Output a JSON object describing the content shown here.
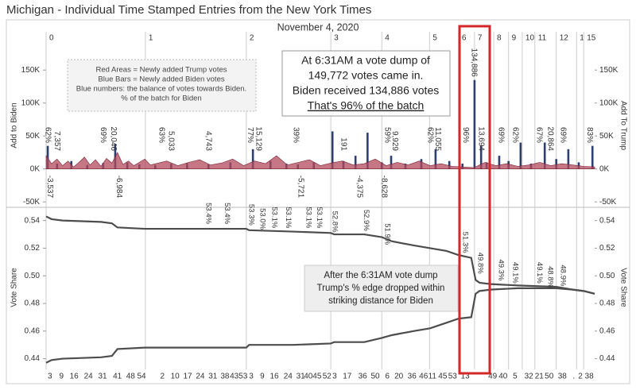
{
  "chart_data": [
    {
      "type": "bar",
      "title": "Michigan - Individual Time Stamped Entries from the New York Times",
      "subtitle": "November 4, 2020",
      "ylabel": "Add to Biden",
      "y2label": "Add To Trump",
      "xlim": [
        0,
        100
      ],
      "xticks": [
        {
          "value": 0,
          "label": "0"
        },
        {
          "value": 18.1,
          "label": "1"
        },
        {
          "value": 36.5,
          "label": "2"
        },
        {
          "value": 51.9,
          "label": "3"
        },
        {
          "value": 61.2,
          "label": "4"
        },
        {
          "value": 69.9,
          "label": "5"
        },
        {
          "value": 75.2,
          "label": "6"
        },
        {
          "value": 78.1,
          "label": "7"
        },
        {
          "value": 81.6,
          "label": "8"
        },
        {
          "value": 84.3,
          "label": "9"
        },
        {
          "value": 86.8,
          "label": "10"
        },
        {
          "value": 89.1,
          "label": "11"
        },
        {
          "value": 93.0,
          "label": "12"
        },
        {
          "value": 96.7,
          "label": "1"
        },
        {
          "value": 98.0,
          "label": "15"
        }
      ],
      "ylim": [
        -57000,
        190000
      ],
      "yticks": [
        {
          "value": -50000,
          "label": "-50K"
        },
        {
          "value": 0,
          "label": "0K"
        },
        {
          "value": 50000,
          "label": "50K"
        },
        {
          "value": 100000,
          "label": "100K"
        },
        {
          "value": 150000,
          "label": "150K"
        }
      ],
      "series": [
        {
          "type": "bar",
          "color": "#2d3f6e",
          "x": [
            0.3,
            2.0,
            4.6,
            7.5,
            10.4,
            12.6,
            14.8,
            17.0,
            19.9,
            22.8,
            25.7,
            29.6,
            33.6,
            37.7,
            40.9,
            43.8,
            45.9,
            48.8,
            52.2,
            54.2,
            56.4,
            58.6,
            61.2,
            62.9,
            65.5,
            68.4,
            71.0,
            73.5,
            75.9,
            78.1,
            79.3,
            80.3,
            82.6,
            84.3,
            86.5,
            88.4,
            90.9,
            93.0,
            95.2,
            97.1,
            99.6
          ],
          "values": [
            35000,
            8000,
            12000,
            6000,
            9000,
            38000,
            10000,
            7000,
            6000,
            8000,
            9000,
            7000,
            10000,
            30000,
            12000,
            8000,
            7000,
            10000,
            57000,
            12000,
            20000,
            55000,
            10000,
            20000,
            8000,
            15000,
            30000,
            12000,
            8000,
            134886,
            35000,
            10000,
            20000,
            12000,
            40000,
            8000,
            40000,
            15000,
            30000,
            10000,
            35000
          ]
        },
        {
          "type": "area",
          "color": "#b24a5c",
          "x": [
            0,
            1,
            2,
            3,
            4,
            5,
            6,
            7,
            8,
            9,
            10,
            11,
            12,
            13,
            14,
            15,
            16,
            17,
            18,
            19,
            20,
            22,
            24,
            26,
            28,
            30,
            32,
            34,
            36,
            38,
            40,
            42,
            44,
            46,
            48,
            50,
            52,
            54,
            56,
            58,
            60,
            62,
            64,
            66,
            68,
            70,
            72,
            74,
            76,
            78,
            80,
            82,
            84,
            86,
            88,
            90,
            92,
            94,
            96,
            98,
            100
          ],
          "values": [
            20000,
            8000,
            15000,
            5000,
            12000,
            3000,
            10000,
            18000,
            6000,
            14000,
            4000,
            16000,
            9000,
            25000,
            7000,
            12000,
            5000,
            10000,
            15000,
            6000,
            8000,
            12000,
            5000,
            10000,
            14000,
            6000,
            9000,
            15000,
            5000,
            12000,
            8000,
            20000,
            6000,
            10000,
            14000,
            5000,
            9000,
            12000,
            6000,
            8000,
            15000,
            5000,
            10000,
            6000,
            12000,
            5000,
            8000,
            4000,
            3000,
            2000,
            10000,
            5000,
            8000,
            4000,
            6000,
            10000,
            5000,
            8000,
            6000,
            4000,
            3000
          ]
        }
      ],
      "balance_labels": {
        "x": [
          2.0,
          12.3,
          22.8,
          29.6,
          38.7,
          46.4,
          54.2,
          63.6,
          71.4,
          78.0,
          79.3,
          91.9,
          0.7,
          13.3,
          57.1,
          61.6
        ],
        "values": [
          7357,
          20046,
          5033,
          4743,
          15129,
          -5721,
          191,
          9929,
          11055,
          134886,
          13694,
          20864,
          -3537,
          -6984,
          -4375,
          -8628
        ],
        "value_labels": [
          "7,357",
          "20,046",
          "5,033",
          "4,743",
          "15,129",
          "-5,721",
          "191",
          "9,929",
          "11,055",
          "134,886",
          "13,694",
          "20,864",
          "-3,537",
          "-6,984",
          "-4,375",
          "-8,628"
        ]
      },
      "batch_share": {
        "x": [
          0.3,
          10.4,
          21.0,
          37.2,
          45.5,
          62.2,
          70.0,
          76.5,
          82.9,
          85.5,
          89.9,
          94.2,
          99.1
        ],
        "values": [
          62,
          69,
          63,
          77,
          39,
          59,
          62,
          96,
          69,
          62,
          67,
          69,
          83
        ],
        "value_labels": [
          "62%",
          "69%",
          "63%",
          "77%",
          "39%",
          "59%",
          "62%",
          "96%",
          "69%",
          "62%",
          "67%",
          "69%",
          "83%"
        ]
      },
      "legend_note": [
        "Red Areas = Newly added Trump votes",
        "Blue Bars = Newly added Biden votes",
        "Blue numbers: the balance of votes towards Biden.",
        "% of the batch for Biden"
      ],
      "callout": [
        "At 6:31AM a vote dump of",
        "149,772 votes came in.",
        "Biden received 134,886 votes",
        "That's 96% of the batch"
      ]
    },
    {
      "type": "line",
      "ylabel": "Vote Share",
      "xlim": [
        0,
        100
      ],
      "xticks": [
        {
          "value": 0.7,
          "label": "3"
        },
        {
          "value": 2.8,
          "label": "9"
        },
        {
          "value": 5.1,
          "label": "16"
        },
        {
          "value": 7.7,
          "label": "24"
        },
        {
          "value": 10.3,
          "label": "31"
        },
        {
          "value": 13.0,
          "label": "41"
        },
        {
          "value": 15.4,
          "label": "48"
        },
        {
          "value": 17.4,
          "label": "54"
        },
        {
          "value": 21.2,
          "label": "2"
        },
        {
          "value": 23.5,
          "label": "10"
        },
        {
          "value": 25.8,
          "label": "17"
        },
        {
          "value": 28.1,
          "label": "24"
        },
        {
          "value": 30.4,
          "label": "31"
        },
        {
          "value": 32.6,
          "label": "38"
        },
        {
          "value": 34.3,
          "label": "43"
        },
        {
          "value": 35.9,
          "label": "53"
        },
        {
          "value": 37.4,
          "label": "3"
        },
        {
          "value": 39.4,
          "label": "9"
        },
        {
          "value": 41.6,
          "label": "16"
        },
        {
          "value": 44.1,
          "label": "24"
        },
        {
          "value": 46.4,
          "label": "31"
        },
        {
          "value": 47.8,
          "label": "40"
        },
        {
          "value": 49.4,
          "label": "45"
        },
        {
          "value": 51.2,
          "label": "52"
        },
        {
          "value": 52.6,
          "label": "3"
        },
        {
          "value": 54.9,
          "label": "17"
        },
        {
          "value": 57.7,
          "label": "36"
        },
        {
          "value": 60.0,
          "label": "50"
        },
        {
          "value": 62.2,
          "label": "6"
        },
        {
          "value": 64.3,
          "label": "20"
        },
        {
          "value": 66.7,
          "label": "36"
        },
        {
          "value": 68.8,
          "label": "46"
        },
        {
          "value": 70.4,
          "label": "11"
        },
        {
          "value": 72.3,
          "label": "45"
        },
        {
          "value": 74.1,
          "label": "53"
        },
        {
          "value": 76.4,
          "label": "13"
        },
        {
          "value": 81.4,
          "label": "49"
        },
        {
          "value": 83.3,
          "label": "40"
        },
        {
          "value": 85.5,
          "label": "5"
        },
        {
          "value": 88.0,
          "label": "32"
        },
        {
          "value": 89.9,
          "label": "21"
        },
        {
          "value": 91.7,
          "label": "50"
        },
        {
          "value": 94.1,
          "label": "38"
        },
        {
          "value": 96.2,
          "label": "."
        },
        {
          "value": 97.4,
          "label": "2"
        },
        {
          "value": 99.0,
          "label": "38"
        }
      ],
      "ylim": [
        0.434,
        0.549
      ],
      "yticks": [
        0.44,
        0.46,
        0.48,
        {
          "value": 0.5,
          "label": "0.50"
        },
        0.52,
        0.54
      ],
      "series": [
        {
          "color": "#4d4d4d",
          "x": [
            0,
            1,
            3,
            10,
            12,
            13,
            18,
            30,
            36.5,
            37,
            45,
            51.9,
            52.5,
            58,
            61.2,
            63,
            67,
            70,
            73,
            75.2,
            77.5,
            78.3,
            79,
            81,
            86,
            93,
            96,
            98,
            100
          ],
          "values": [
            0.543,
            0.541,
            0.54,
            0.539,
            0.538,
            0.535,
            0.534,
            0.534,
            0.534,
            0.533,
            0.532,
            0.531,
            0.53,
            0.53,
            0.528,
            0.525,
            0.522,
            0.52,
            0.518,
            0.515,
            0.513,
            0.497,
            0.495,
            0.494,
            0.493,
            0.492,
            0.49,
            0.489,
            0.487
          ]
        },
        {
          "color": "#4d4d4d",
          "x": [
            0,
            1,
            3,
            10,
            12,
            13,
            18,
            30,
            36.5,
            37,
            45,
            51.9,
            52.5,
            58,
            61.2,
            63,
            67,
            70,
            73,
            75.2,
            77.5,
            78.3,
            79,
            81,
            86,
            93,
            96,
            98,
            100
          ],
          "values": [
            0.437,
            0.439,
            0.44,
            0.441,
            0.442,
            0.447,
            0.448,
            0.448,
            0.448,
            0.45,
            0.45,
            0.451,
            0.452,
            0.452,
            0.455,
            0.457,
            0.46,
            0.462,
            0.466,
            0.469,
            0.47,
            0.487,
            0.489,
            0.49,
            0.491,
            0.491,
            0.49,
            0.489,
            0.487
          ]
        }
      ],
      "share_labels": {
        "x": [
          29.6,
          33.0,
          37.4,
          39.4,
          41.6,
          44.1,
          47.8,
          49.8,
          52.6,
          58.3,
          62.2,
          76.4,
          79.1,
          82.9,
          85.5,
          89.9,
          91.9,
          94.2
        ],
        "values": [
          0.534,
          0.534,
          0.533,
          0.53,
          0.531,
          0.531,
          0.531,
          0.531,
          0.528,
          0.529,
          0.519,
          0.513,
          0.498,
          0.493,
          0.491,
          0.491,
          0.488,
          0.489
        ],
        "value_labels": [
          "53.4%",
          "53.4%",
          "53.3%",
          "53.0%",
          "53.1%",
          "53.1%",
          "53.1%",
          "53.1%",
          "52.8%",
          "52.9%",
          "51.9%",
          "51.3%",
          "49.8%",
          "49.3%",
          "49.1%",
          "49.1%",
          "48.8%",
          "48.9%"
        ]
      },
      "callout": [
        "After the 6:31AM vote dump",
        "Trump's % edge dropped within",
        "striking distance for Biden"
      ]
    }
  ]
}
